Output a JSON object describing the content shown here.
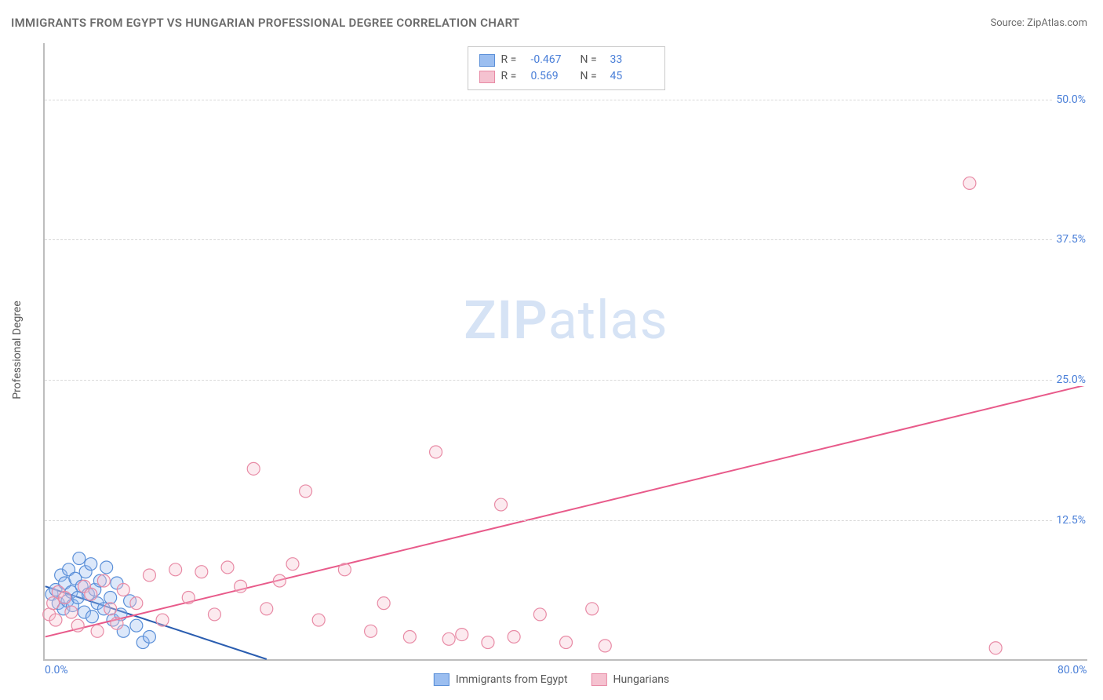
{
  "title": "IMMIGRANTS FROM EGYPT VS HUNGARIAN PROFESSIONAL DEGREE CORRELATION CHART",
  "source_label": "Source: ",
  "source_name": "ZipAtlas.com",
  "watermark_zip": "ZIP",
  "watermark_atlas": "atlas",
  "ylabel": "Professional Degree",
  "chart": {
    "type": "scatter",
    "background_color": "#ffffff",
    "grid_color": "#d9d9d9",
    "axis_color": "#bdbdbd",
    "xlim": [
      0,
      80
    ],
    "ylim": [
      0,
      55
    ],
    "xticks": [
      {
        "v": 0,
        "label": "0.0%"
      },
      {
        "v": 80,
        "label": "80.0%"
      }
    ],
    "yticks": [
      {
        "v": 12.5,
        "label": "12.5%"
      },
      {
        "v": 25.0,
        "label": "25.0%"
      },
      {
        "v": 37.5,
        "label": "37.5%"
      },
      {
        "v": 50.0,
        "label": "50.0%"
      }
    ],
    "marker_radius": 8,
    "marker_fill_opacity": 0.35,
    "marker_stroke_width": 1.2,
    "line_width": 2,
    "series": [
      {
        "name": "Immigrants from Egypt",
        "color_fill": "#9bbef0",
        "color_stroke": "#5a8fd8",
        "line_color": "#2a5db0",
        "r_label": "R = ",
        "r_value": "-0.467",
        "n_label": "N = ",
        "n_value": "33",
        "trend": {
          "x1": 0,
          "y1": 6.5,
          "x2": 17,
          "y2": 0
        },
        "points": [
          [
            0.5,
            5.8
          ],
          [
            0.8,
            6.2
          ],
          [
            1.0,
            5.0
          ],
          [
            1.2,
            7.5
          ],
          [
            1.4,
            4.5
          ],
          [
            1.5,
            6.8
          ],
          [
            1.7,
            5.2
          ],
          [
            1.8,
            8.0
          ],
          [
            2.0,
            6.0
          ],
          [
            2.1,
            4.8
          ],
          [
            2.3,
            7.2
          ],
          [
            2.5,
            5.5
          ],
          [
            2.6,
            9.0
          ],
          [
            2.8,
            6.5
          ],
          [
            3.0,
            4.2
          ],
          [
            3.1,
            7.8
          ],
          [
            3.3,
            5.8
          ],
          [
            3.5,
            8.5
          ],
          [
            3.6,
            3.8
          ],
          [
            3.8,
            6.2
          ],
          [
            4.0,
            5.0
          ],
          [
            4.2,
            7.0
          ],
          [
            4.5,
            4.5
          ],
          [
            4.7,
            8.2
          ],
          [
            5.0,
            5.5
          ],
          [
            5.2,
            3.5
          ],
          [
            5.5,
            6.8
          ],
          [
            5.8,
            4.0
          ],
          [
            6.0,
            2.5
          ],
          [
            6.5,
            5.2
          ],
          [
            7.0,
            3.0
          ],
          [
            7.5,
            1.5
          ],
          [
            8.0,
            2.0
          ]
        ]
      },
      {
        "name": "Hungarians",
        "color_fill": "#f5c2d0",
        "color_stroke": "#e88aa5",
        "line_color": "#e85a8a",
        "r_label": "R = ",
        "r_value": "0.569",
        "n_label": "N = ",
        "n_value": "45",
        "trend": {
          "x1": 0,
          "y1": 2.0,
          "x2": 80,
          "y2": 24.5
        },
        "points": [
          [
            0.3,
            4.0
          ],
          [
            0.6,
            5.0
          ],
          [
            0.8,
            3.5
          ],
          [
            1.0,
            6.0
          ],
          [
            1.5,
            5.5
          ],
          [
            2.0,
            4.2
          ],
          [
            2.5,
            3.0
          ],
          [
            3.0,
            6.5
          ],
          [
            3.5,
            5.8
          ],
          [
            4.0,
            2.5
          ],
          [
            4.5,
            7.0
          ],
          [
            5.0,
            4.5
          ],
          [
            5.5,
            3.2
          ],
          [
            6.0,
            6.2
          ],
          [
            7.0,
            5.0
          ],
          [
            8.0,
            7.5
          ],
          [
            9.0,
            3.5
          ],
          [
            10.0,
            8.0
          ],
          [
            11.0,
            5.5
          ],
          [
            12.0,
            7.8
          ],
          [
            13.0,
            4.0
          ],
          [
            14.0,
            8.2
          ],
          [
            15.0,
            6.5
          ],
          [
            16.0,
            17.0
          ],
          [
            17.0,
            4.5
          ],
          [
            18.0,
            7.0
          ],
          [
            19.0,
            8.5
          ],
          [
            20.0,
            15.0
          ],
          [
            21.0,
            3.5
          ],
          [
            23.0,
            8.0
          ],
          [
            25.0,
            2.5
          ],
          [
            26.0,
            5.0
          ],
          [
            28.0,
            2.0
          ],
          [
            30.0,
            18.5
          ],
          [
            31.0,
            1.8
          ],
          [
            32.0,
            2.2
          ],
          [
            34.0,
            1.5
          ],
          [
            35.0,
            13.8
          ],
          [
            36.0,
            2.0
          ],
          [
            38.0,
            4.0
          ],
          [
            40.0,
            1.5
          ],
          [
            42.0,
            4.5
          ],
          [
            43.0,
            1.2
          ],
          [
            71.0,
            42.5
          ],
          [
            73.0,
            1.0
          ]
        ]
      }
    ]
  }
}
